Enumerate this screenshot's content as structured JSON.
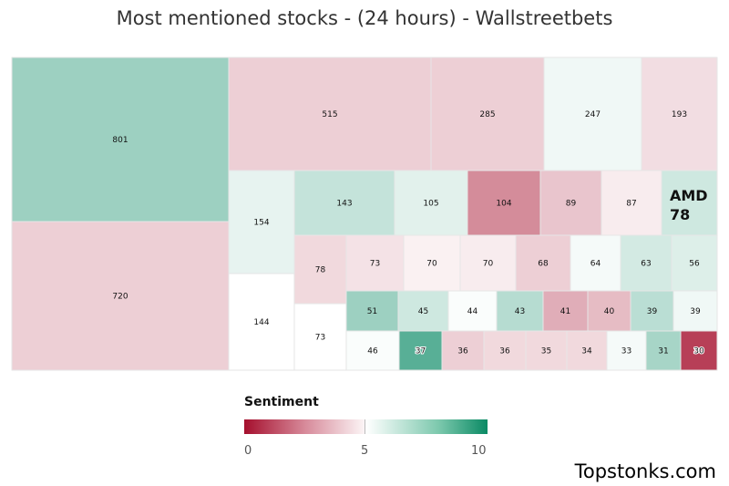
{
  "chart_data": {
    "type": "treemap",
    "title": "Most mentioned stocks - (24 hours) - Wallstreetbets",
    "metric": "mentions",
    "highlighted": {
      "ticker": "AMD",
      "value": 78
    },
    "cells": [
      {
        "label": "801",
        "value": 801,
        "sentiment": 7.0
      },
      {
        "label": "720",
        "value": 720,
        "sentiment": 4.0
      },
      {
        "label": "515",
        "value": 515,
        "sentiment": 4.0
      },
      {
        "label": "285",
        "value": 285,
        "sentiment": 4.0
      },
      {
        "label": "247",
        "value": 247,
        "sentiment": 5.3
      },
      {
        "label": "193",
        "value": 193,
        "sentiment": 4.3
      },
      {
        "label": "154",
        "value": 154,
        "sentiment": 5.5
      },
      {
        "label": "144",
        "value": 144,
        "sentiment": 5.0
      },
      {
        "label": "143",
        "value": 143,
        "sentiment": 6.2
      },
      {
        "label": "105",
        "value": 105,
        "sentiment": 5.6
      },
      {
        "label": "104",
        "value": 104,
        "sentiment": 2.6
      },
      {
        "label": "89",
        "value": 89,
        "sentiment": 3.8
      },
      {
        "label": "87",
        "value": 87,
        "sentiment": 4.6
      },
      {
        "label": "AMD",
        "value": 78,
        "sentiment": 6.0
      },
      {
        "label": "78",
        "value": 78,
        "sentiment": 4.2
      },
      {
        "label": "73",
        "value": 73,
        "sentiment": 4.4
      },
      {
        "label": "73",
        "value": 73,
        "sentiment": 5.0
      },
      {
        "label": "70",
        "value": 70,
        "sentiment": 4.7
      },
      {
        "label": "70",
        "value": 70,
        "sentiment": 4.6
      },
      {
        "label": "68",
        "value": 68,
        "sentiment": 4.0
      },
      {
        "label": "64",
        "value": 64,
        "sentiment": 5.2
      },
      {
        "label": "63",
        "value": 63,
        "sentiment": 5.9
      },
      {
        "label": "56",
        "value": 56,
        "sentiment": 5.7
      },
      {
        "label": "51",
        "value": 51,
        "sentiment": 7.0
      },
      {
        "label": "45",
        "value": 45,
        "sentiment": 6.0
      },
      {
        "label": "44",
        "value": 44,
        "sentiment": 5.1
      },
      {
        "label": "43",
        "value": 43,
        "sentiment": 6.5
      },
      {
        "label": "41",
        "value": 41,
        "sentiment": 3.3
      },
      {
        "label": "40",
        "value": 40,
        "sentiment": 3.6
      },
      {
        "label": "39",
        "value": 39,
        "sentiment": 6.4
      },
      {
        "label": "39",
        "value": 39,
        "sentiment": 5.3
      },
      {
        "label": "46",
        "value": 46,
        "sentiment": 5.1
      },
      {
        "label": "37",
        "value": 37,
        "sentiment": 8.4
      },
      {
        "label": "36",
        "value": 36,
        "sentiment": 4.0
      },
      {
        "label": "36",
        "value": 36,
        "sentiment": 4.2
      },
      {
        "label": "35",
        "value": 35,
        "sentiment": 4.2
      },
      {
        "label": "34",
        "value": 34,
        "sentiment": 4.2
      },
      {
        "label": "33",
        "value": 33,
        "sentiment": 5.2
      },
      {
        "label": "31",
        "value": 31,
        "sentiment": 6.8
      },
      {
        "label": "30",
        "value": 30,
        "sentiment": 1.0
      }
    ],
    "legend": {
      "title": "Sentiment",
      "min": 0,
      "mid": 5,
      "max": 10,
      "colors": {
        "low": "#a50f2d",
        "mid": "#ffffff",
        "high": "#0a8a64"
      }
    }
  },
  "legend_ticks": {
    "min": "0",
    "mid": "5",
    "max": "10"
  },
  "brand": "Topstonks.com"
}
